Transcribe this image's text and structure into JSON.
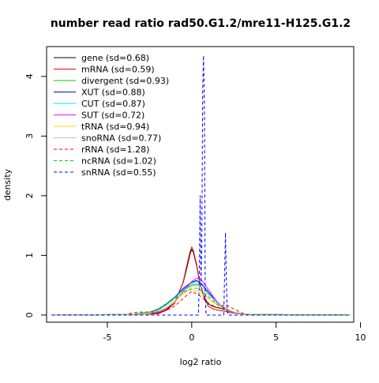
{
  "chart_data": {
    "type": "line",
    "title": "number read ratio rad50.G1.2/mre11-H125.G1.2",
    "xlabel": "log2 ratio",
    "ylabel": "density",
    "xlim": [
      -8.6,
      9.6
    ],
    "ylim": [
      -0.12,
      4.5
    ],
    "x_ticks": [
      -5,
      0,
      5,
      10
    ],
    "y_ticks": [
      0,
      1,
      2,
      3,
      4
    ],
    "grid": false,
    "legend_position": "top-left",
    "series": [
      {
        "name": "gene (sd=0.68)",
        "color": "#000000",
        "dash": "solid",
        "x": [
          -8.3,
          -3.0,
          -2.0,
          -1.5,
          -1.0,
          -0.5,
          -0.3,
          -0.1,
          0.0,
          0.1,
          0.3,
          0.5,
          0.8,
          1.0,
          1.3,
          1.6,
          2.0,
          2.5,
          3.2,
          9.4
        ],
        "y": [
          0,
          0.01,
          0.03,
          0.09,
          0.22,
          0.55,
          0.78,
          1.02,
          1.1,
          1.05,
          0.82,
          0.5,
          0.27,
          0.18,
          0.14,
          0.12,
          0.09,
          0.04,
          0.01,
          0
        ]
      },
      {
        "name": "mRNA (sd=0.59)",
        "color": "#ff0000",
        "dash": "solid",
        "x": [
          -8.3,
          -3.0,
          -2.0,
          -1.5,
          -1.0,
          -0.5,
          -0.3,
          -0.1,
          0.0,
          0.1,
          0.3,
          0.5,
          0.8,
          1.0,
          1.3,
          1.6,
          2.0,
          2.5,
          3.2,
          9.4
        ],
        "y": [
          0,
          0.01,
          0.02,
          0.08,
          0.2,
          0.56,
          0.82,
          1.06,
          1.14,
          1.08,
          0.84,
          0.5,
          0.24,
          0.14,
          0.1,
          0.08,
          0.06,
          0.03,
          0.01,
          0
        ]
      },
      {
        "name": "divergent (sd=0.93)",
        "color": "#00cd00",
        "dash": "solid",
        "x": [
          -8.3,
          -3.5,
          -2.5,
          -2.0,
          -1.5,
          -1.0,
          -0.5,
          0.0,
          0.3,
          0.6,
          1.0,
          1.5,
          2.0,
          2.5,
          3.2,
          9.4
        ],
        "y": [
          0,
          0.01,
          0.05,
          0.1,
          0.19,
          0.3,
          0.42,
          0.5,
          0.52,
          0.46,
          0.34,
          0.2,
          0.1,
          0.04,
          0.01,
          0
        ]
      },
      {
        "name": "XUT (sd=0.88)",
        "color": "#0000ff",
        "dash": "solid",
        "x": [
          -8.3,
          -3.2,
          -2.5,
          -2.0,
          -1.5,
          -1.0,
          -0.5,
          0.0,
          0.3,
          0.6,
          1.0,
          1.5,
          2.0,
          2.5,
          3.2,
          9.4
        ],
        "y": [
          0,
          0.01,
          0.04,
          0.09,
          0.18,
          0.3,
          0.45,
          0.55,
          0.58,
          0.52,
          0.38,
          0.22,
          0.1,
          0.04,
          0.01,
          0
        ]
      },
      {
        "name": "CUT (sd=0.87)",
        "color": "#00e5ee",
        "dash": "solid",
        "x": [
          -8.3,
          -3.2,
          -2.5,
          -2.0,
          -1.5,
          -1.0,
          -0.5,
          0.0,
          0.3,
          0.6,
          1.0,
          1.5,
          2.0,
          2.5,
          3.2,
          9.4
        ],
        "y": [
          0,
          0.01,
          0.04,
          0.08,
          0.17,
          0.29,
          0.43,
          0.53,
          0.56,
          0.5,
          0.36,
          0.21,
          0.1,
          0.04,
          0.01,
          0
        ]
      },
      {
        "name": "SUT (sd=0.72)",
        "color": "#ff00ff",
        "dash": "solid",
        "x": [
          -8.3,
          -3.0,
          -2.0,
          -1.5,
          -1.0,
          -0.5,
          0.0,
          0.3,
          0.6,
          1.0,
          1.5,
          2.0,
          2.5,
          3.2,
          9.4
        ],
        "y": [
          0,
          0.01,
          0.05,
          0.11,
          0.22,
          0.4,
          0.56,
          0.62,
          0.58,
          0.42,
          0.22,
          0.09,
          0.03,
          0.01,
          0
        ]
      },
      {
        "name": "tRNA (sd=0.94)",
        "color": "#ffd700",
        "dash": "solid",
        "x": [
          -8.3,
          -3.0,
          -2.0,
          -1.5,
          -1.0,
          -0.6,
          -0.3,
          0.0,
          0.3,
          0.6,
          0.9,
          1.2,
          1.6,
          2.0,
          2.6,
          3.2,
          9.4
        ],
        "y": [
          0,
          0.01,
          0.06,
          0.12,
          0.22,
          0.33,
          0.4,
          0.43,
          0.4,
          0.36,
          0.3,
          0.22,
          0.16,
          0.1,
          0.04,
          0.01,
          0
        ]
      },
      {
        "name": "snoRNA (sd=0.77)",
        "color": "#bebebe",
        "dash": "solid",
        "x": [
          -8.3,
          -2.8,
          -2.0,
          -1.5,
          -1.0,
          -0.5,
          0.0,
          0.3,
          0.6,
          1.0,
          1.5,
          2.0,
          2.5,
          3.2,
          9.4
        ],
        "y": [
          0,
          0.01,
          0.06,
          0.13,
          0.24,
          0.38,
          0.48,
          0.5,
          0.46,
          0.34,
          0.2,
          0.12,
          0.05,
          0.01,
          0
        ]
      },
      {
        "name": "rRNA (sd=1.28)",
        "color": "#ff0000",
        "dash": "dashed",
        "x": [
          -8.3,
          -4.0,
          -3.5,
          -3.0,
          -2.5,
          -2.0,
          -1.5,
          -1.0,
          -0.5,
          0.0,
          0.5,
          1.0,
          1.5,
          2.0,
          2.5,
          3.0,
          3.5,
          9.4
        ],
        "y": [
          0,
          0.0,
          0.04,
          0.05,
          0.05,
          0.05,
          0.08,
          0.15,
          0.28,
          0.4,
          0.32,
          0.2,
          0.12,
          0.18,
          0.1,
          0.03,
          0.0,
          0
        ]
      },
      {
        "name": "ncRNA (sd=1.02)",
        "color": "#00cd00",
        "dash": "dashed",
        "x": [
          -8.3,
          -3.5,
          -2.5,
          -2.0,
          -1.5,
          -1.0,
          -0.5,
          0.0,
          0.3,
          0.6,
          1.0,
          1.5,
          2.0,
          2.5,
          3.2,
          9.4
        ],
        "y": [
          0,
          0.01,
          0.05,
          0.1,
          0.18,
          0.28,
          0.38,
          0.44,
          0.45,
          0.4,
          0.3,
          0.18,
          0.1,
          0.04,
          0.01,
          0
        ]
      },
      {
        "name": "snRNA (sd=0.55)",
        "color": "#0000ff",
        "dash": "dashed",
        "x": [
          -8.3,
          0.4,
          0.45,
          0.5,
          0.55,
          0.6,
          0.65,
          0.7,
          0.75,
          0.8,
          0.85,
          1.6,
          1.9,
          1.95,
          2.0,
          2.05,
          2.1,
          2.15,
          2.5,
          9.4
        ],
        "y": [
          0,
          0,
          0.6,
          2.0,
          0.5,
          1.3,
          3.8,
          4.35,
          3.5,
          0.4,
          0,
          0,
          0,
          0.7,
          1.38,
          0.6,
          0.1,
          0,
          0,
          0
        ]
      }
    ]
  }
}
